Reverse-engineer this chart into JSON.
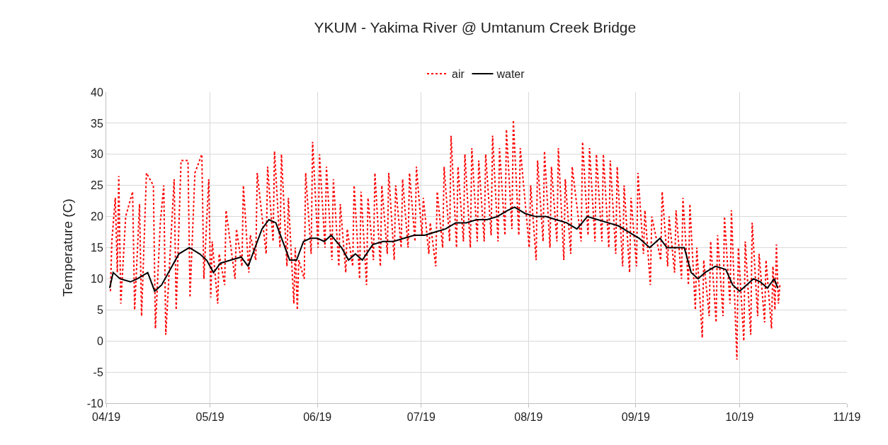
{
  "chart_data": {
    "type": "line",
    "title": "YKUM - Yakima River @ Umtanum Creek Bridge",
    "ylabel": "Temperature (C)",
    "xlim": [
      "2019-04-01",
      "2019-11-01"
    ],
    "xticks": [
      {
        "value": "2019-04-01",
        "label": "04/19"
      },
      {
        "value": "2019-05-01",
        "label": "05/19"
      },
      {
        "value": "2019-06-01",
        "label": "06/19"
      },
      {
        "value": "2019-07-01",
        "label": "07/19"
      },
      {
        "value": "2019-08-01",
        "label": "08/19"
      },
      {
        "value": "2019-09-01",
        "label": "09/19"
      },
      {
        "value": "2019-10-01",
        "label": "10/19"
      },
      {
        "value": "2019-11-01",
        "label": "11/19"
      }
    ],
    "ylim": [
      -10,
      40
    ],
    "yticks": [
      -10,
      -5,
      0,
      5,
      10,
      15,
      20,
      25,
      30,
      35,
      40
    ],
    "grid": true,
    "legend": "top",
    "series": [
      {
        "name": "air",
        "color": "#ff0000",
        "line_style": "dotted",
        "x": [
          "2019-04-02T05:00",
          "2019-04-02T15:00",
          "2019-04-03T15:00",
          "2019-04-04T05:00",
          "2019-04-04T15:00",
          "2019-04-05T05:00",
          "2019-04-06T15:00",
          "2019-04-08T15:00",
          "2019-04-09T05:00",
          "2019-04-10T15:00",
          "2019-04-11T05:00",
          "2019-04-12T15:00",
          "2019-04-14T15:00",
          "2019-04-15T05:00",
          "2019-04-16T15:00",
          "2019-04-17T15:00",
          "2019-04-18T05:00",
          "2019-04-20T15:00",
          "2019-04-21T05:00",
          "2019-04-22T15:00",
          "2019-04-24T15:00",
          "2019-04-25T05:00",
          "2019-04-26T15:00",
          "2019-04-28T15:00",
          "2019-04-29T05:00",
          "2019-04-30T15:00",
          "2019-05-01T05:00",
          "2019-05-01T15:00",
          "2019-05-03T05:00",
          "2019-05-03T15:00",
          "2019-05-05T05:00",
          "2019-05-05T15:00",
          "2019-05-08T05:00",
          "2019-05-08T15:00",
          "2019-05-10T05:00",
          "2019-05-10T15:00",
          "2019-05-12T05:00",
          "2019-05-12T15:00",
          "2019-05-14T05:00",
          "2019-05-14T15:00",
          "2019-05-17T05:00",
          "2019-05-17T15:00",
          "2019-05-19T05:00",
          "2019-05-19T15:00",
          "2019-05-21T05:00",
          "2019-05-21T15:00",
          "2019-05-23T05:00",
          "2019-05-23T15:00",
          "2019-05-25T05:00",
          "2019-05-25T15:00",
          "2019-05-26T05:00",
          "2019-05-26T15:00",
          "2019-05-28T05:00",
          "2019-05-28T15:00",
          "2019-05-30T05:00",
          "2019-05-30T15:00",
          "2019-06-01T05:00",
          "2019-06-01T15:00",
          "2019-06-03T05:00",
          "2019-06-03T15:00",
          "2019-06-05T05:00",
          "2019-06-05T15:00",
          "2019-06-07T05:00",
          "2019-06-07T15:00",
          "2019-06-09T05:00",
          "2019-06-09T15:00",
          "2019-06-11T05:00",
          "2019-06-11T15:00",
          "2019-06-13T05:00",
          "2019-06-13T15:00",
          "2019-06-15T05:00",
          "2019-06-15T15:00",
          "2019-06-17T05:00",
          "2019-06-17T15:00",
          "2019-06-19T05:00",
          "2019-06-19T15:00",
          "2019-06-21T05:00",
          "2019-06-21T15:00",
          "2019-06-23T05:00",
          "2019-06-23T15:00",
          "2019-06-25T05:00",
          "2019-06-25T15:00",
          "2019-06-27T05:00",
          "2019-06-27T15:00",
          "2019-06-29T05:00",
          "2019-06-29T15:00",
          "2019-07-01T05:00",
          "2019-07-01T15:00",
          "2019-07-03T05:00",
          "2019-07-03T15:00",
          "2019-07-05T05:00",
          "2019-07-05T15:00",
          "2019-07-07T05:00",
          "2019-07-07T15:00",
          "2019-07-09T05:00",
          "2019-07-09T15:00",
          "2019-07-11T05:00",
          "2019-07-11T15:00",
          "2019-07-13T05:00",
          "2019-07-13T15:00",
          "2019-07-15T05:00",
          "2019-07-15T15:00",
          "2019-07-17T05:00",
          "2019-07-17T15:00",
          "2019-07-19T05:00",
          "2019-07-19T15:00",
          "2019-07-21T05:00",
          "2019-07-21T15:00",
          "2019-07-23T05:00",
          "2019-07-23T15:00",
          "2019-07-25T05:00",
          "2019-07-25T15:00",
          "2019-07-27T05:00",
          "2019-07-27T15:00",
          "2019-07-29T05:00",
          "2019-07-29T15:00",
          "2019-08-01T05:00",
          "2019-08-01T15:00",
          "2019-08-03T05:00",
          "2019-08-03T15:00",
          "2019-08-05T05:00",
          "2019-08-05T15:00",
          "2019-08-07T05:00",
          "2019-08-07T15:00",
          "2019-08-09T05:00",
          "2019-08-09T15:00",
          "2019-08-11T05:00",
          "2019-08-11T15:00",
          "2019-08-13T05:00",
          "2019-08-13T15:00",
          "2019-08-16T05:00",
          "2019-08-16T15:00",
          "2019-08-18T05:00",
          "2019-08-18T15:00",
          "2019-08-20T05:00",
          "2019-08-20T15:00",
          "2019-08-22T05:00",
          "2019-08-22T15:00",
          "2019-08-24T05:00",
          "2019-08-24T15:00",
          "2019-08-26T05:00",
          "2019-08-26T15:00",
          "2019-08-28T05:00",
          "2019-08-28T15:00",
          "2019-08-30T05:00",
          "2019-08-30T15:00",
          "2019-09-01T05:00",
          "2019-09-01T15:00",
          "2019-09-03T05:00",
          "2019-09-03T15:00",
          "2019-09-05T05:00",
          "2019-09-05T15:00",
          "2019-09-08T05:00",
          "2019-09-08T15:00",
          "2019-09-10T05:00",
          "2019-09-10T15:00",
          "2019-09-12T05:00",
          "2019-09-12T15:00",
          "2019-09-14T05:00",
          "2019-09-14T15:00",
          "2019-09-16T05:00",
          "2019-09-16T15:00",
          "2019-09-18T05:00",
          "2019-09-18T15:00",
          "2019-09-20T05:00",
          "2019-09-20T15:00",
          "2019-09-22T05:00",
          "2019-09-22T15:00",
          "2019-09-24T05:00",
          "2019-09-24T15:00",
          "2019-09-26T05:00",
          "2019-09-26T15:00",
          "2019-09-28T05:00",
          "2019-09-28T15:00",
          "2019-09-30T05:00",
          "2019-09-30T15:00",
          "2019-10-02T05:00",
          "2019-10-02T15:00",
          "2019-10-04T05:00",
          "2019-10-04T15:00",
          "2019-10-06T05:00",
          "2019-10-06T15:00",
          "2019-10-08T05:00",
          "2019-10-08T15:00",
          "2019-10-10T05:00",
          "2019-10-10T15:00",
          "2019-10-11T05:00",
          "2019-10-11T15:00",
          "2019-10-12T05:00",
          "2019-10-12T15:00"
        ],
        "values": [
          8,
          16,
          23,
          11,
          26.5,
          6,
          20,
          24,
          5,
          22,
          4,
          27,
          25,
          2,
          19,
          25,
          1,
          26,
          5,
          29,
          29,
          7,
          27,
          30,
          10,
          26,
          7,
          16,
          6,
          14,
          9,
          21,
          10,
          18,
          12,
          25,
          11,
          17,
          13,
          27,
          14,
          28,
          16,
          30.5,
          15,
          30,
          12,
          23,
          6,
          15,
          5,
          13,
          10,
          27,
          14,
          32,
          15,
          30,
          15,
          28,
          13,
          26,
          12,
          22,
          11,
          18,
          12,
          25,
          10,
          24,
          9,
          23,
          13,
          27,
          12,
          25,
          14,
          27,
          13,
          25,
          15,
          26,
          15,
          27,
          16,
          28,
          17,
          23,
          14,
          19,
          12,
          24,
          15,
          28,
          16,
          33,
          15,
          28,
          16,
          30,
          15,
          31,
          16,
          29,
          16,
          30,
          17,
          33,
          16,
          31,
          17,
          34,
          18,
          35.5,
          17,
          31,
          15,
          25,
          13,
          29,
          16,
          30.5,
          15,
          28,
          16,
          31,
          13,
          26,
          14,
          28,
          16,
          32,
          17,
          31,
          16,
          30,
          16,
          30,
          15,
          29,
          14,
          28,
          12,
          25,
          11,
          23,
          12,
          27,
          14,
          21,
          9,
          20,
          13,
          24,
          12,
          20,
          11,
          21,
          10,
          23,
          9,
          22,
          5,
          15,
          0.5,
          13,
          4,
          16,
          3,
          17,
          4,
          20,
          6,
          21,
          -3,
          15,
          0,
          16,
          1,
          19,
          4,
          14,
          3,
          13,
          2,
          12,
          5,
          15.5,
          6,
          9
        ]
      },
      {
        "name": "water",
        "color": "#000000",
        "line_style": "solid",
        "x": [
          "2019-04-02",
          "2019-04-03",
          "2019-04-05",
          "2019-04-08",
          "2019-04-10",
          "2019-04-13",
          "2019-04-15",
          "2019-04-17",
          "2019-04-20",
          "2019-04-22",
          "2019-04-25",
          "2019-04-28",
          "2019-04-30",
          "2019-05-02",
          "2019-05-04",
          "2019-05-07",
          "2019-05-10",
          "2019-05-12",
          "2019-05-14",
          "2019-05-16",
          "2019-05-18",
          "2019-05-20",
          "2019-05-22",
          "2019-05-24",
          "2019-05-26",
          "2019-05-28",
          "2019-05-30",
          "2019-06-01",
          "2019-06-03",
          "2019-06-05",
          "2019-06-08",
          "2019-06-10",
          "2019-06-12",
          "2019-06-14",
          "2019-06-17",
          "2019-06-20",
          "2019-06-23",
          "2019-06-26",
          "2019-06-29",
          "2019-07-02",
          "2019-07-05",
          "2019-07-08",
          "2019-07-11",
          "2019-07-14",
          "2019-07-17",
          "2019-07-20",
          "2019-07-23",
          "2019-07-26",
          "2019-07-28",
          "2019-07-31",
          "2019-08-03",
          "2019-08-06",
          "2019-08-09",
          "2019-08-12",
          "2019-08-15",
          "2019-08-18",
          "2019-08-21",
          "2019-08-24",
          "2019-08-27",
          "2019-08-30",
          "2019-09-02",
          "2019-09-05",
          "2019-09-08",
          "2019-09-10",
          "2019-09-13",
          "2019-09-15",
          "2019-09-17",
          "2019-09-19",
          "2019-09-21",
          "2019-09-24",
          "2019-09-27",
          "2019-09-29",
          "2019-10-01",
          "2019-10-03",
          "2019-10-05",
          "2019-10-07",
          "2019-10-09",
          "2019-10-11",
          "2019-10-12"
        ],
        "values": [
          8.5,
          11,
          10,
          9.5,
          10,
          11,
          8,
          9,
          12,
          14,
          15,
          14,
          13,
          11,
          12.5,
          13,
          13.5,
          12,
          15,
          18,
          19.5,
          19,
          16,
          13,
          13,
          16,
          16.5,
          16.5,
          16,
          17,
          15,
          13,
          14,
          13,
          15.5,
          16,
          16,
          16.5,
          17,
          17,
          17.5,
          18,
          19,
          19,
          19.5,
          19.5,
          20,
          21,
          21.5,
          20.5,
          20,
          20,
          19.5,
          19,
          18,
          20,
          19.5,
          19,
          18.5,
          17.5,
          16.5,
          15,
          16.5,
          15,
          15,
          15,
          11,
          10,
          11,
          12,
          11.5,
          9,
          8,
          9,
          10,
          9.5,
          8.5,
          10,
          8.5
        ]
      }
    ]
  }
}
